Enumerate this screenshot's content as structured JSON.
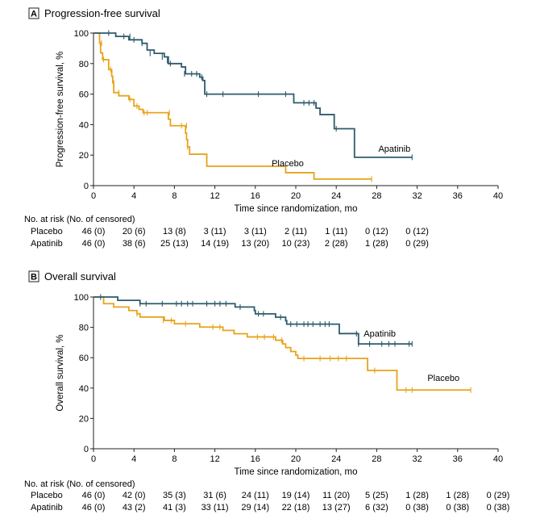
{
  "colors": {
    "placebo": "#E8A31A",
    "apatinib": "#2D5B6B",
    "axis": "#222222"
  },
  "chart_data": [
    {
      "type": "line",
      "panel_letter": "A",
      "title": "Progression-free survival",
      "xlabel": "Time since randomization, mo",
      "ylabel": "Progression-free survival, %",
      "xlim": [
        0,
        40
      ],
      "ylim": [
        0,
        100
      ],
      "xticks": [
        "0",
        "4",
        "8",
        "12",
        "16",
        "20",
        "24",
        "28",
        "32",
        "36",
        "40"
      ],
      "yticks": [
        "0",
        "20",
        "40",
        "60",
        "80",
        "100"
      ],
      "series": [
        {
          "name": "Apatinib",
          "color_key": "apatinib",
          "steps": [
            [
              0,
              100
            ],
            [
              2.2,
              97.8
            ],
            [
              3.5,
              95.6
            ],
            [
              4.8,
              93.3
            ],
            [
              5.3,
              88.9
            ],
            [
              6.0,
              86.7
            ],
            [
              7.0,
              84.4
            ],
            [
              7.4,
              80
            ],
            [
              8.7,
              77.8
            ],
            [
              9.1,
              73.3
            ],
            [
              10.5,
              71.1
            ],
            [
              10.8,
              68.9
            ],
            [
              11.0,
              60
            ],
            [
              19.8,
              54.3
            ],
            [
              22.0,
              50.8
            ],
            [
              22.4,
              46.6
            ],
            [
              23.8,
              37.3
            ],
            [
              25.8,
              18.6
            ],
            [
              31.5,
              18.6
            ]
          ],
          "censors": [
            [
              1.5,
              100
            ],
            [
              3.0,
              97.8
            ],
            [
              3.6,
              97.8
            ],
            [
              4.0,
              95.6
            ],
            [
              4.8,
              93.3
            ],
            [
              5.6,
              86.7
            ],
            [
              6.8,
              84.4
            ],
            [
              7.3,
              82
            ],
            [
              7.6,
              80
            ],
            [
              9.0,
              73.3
            ],
            [
              9.7,
              73.3
            ],
            [
              10.2,
              73.3
            ],
            [
              10.7,
              71.1
            ],
            [
              11.2,
              60
            ],
            [
              12.8,
              60
            ],
            [
              16.3,
              60
            ],
            [
              19.0,
              60
            ],
            [
              20.8,
              54.3
            ],
            [
              21.3,
              54.3
            ],
            [
              21.8,
              54.3
            ],
            [
              24.0,
              37.3
            ],
            [
              31.5,
              18.6
            ]
          ],
          "label": "Apatinib"
        },
        {
          "name": "Placebo",
          "color_key": "placebo",
          "steps": [
            [
              0,
              100
            ],
            [
              0.6,
              93.5
            ],
            [
              0.7,
              87.0
            ],
            [
              0.9,
              82.6
            ],
            [
              1.5,
              76.1
            ],
            [
              1.8,
              71.7
            ],
            [
              1.9,
              67.4
            ],
            [
              2.0,
              61.0
            ],
            [
              2.5,
              58.9
            ],
            [
              3.5,
              56.5
            ],
            [
              4.0,
              52.2
            ],
            [
              4.5,
              50.0
            ],
            [
              4.9,
              47.8
            ],
            [
              7.4,
              43.6
            ],
            [
              7.6,
              39.3
            ],
            [
              9.1,
              34.5
            ],
            [
              9.2,
              30.2
            ],
            [
              9.3,
              25.4
            ],
            [
              9.5,
              20.6
            ],
            [
              11.2,
              12.7
            ],
            [
              19.0,
              8.5
            ],
            [
              21.8,
              4.3
            ],
            [
              27.5,
              4.3
            ]
          ],
          "censors": [
            [
              0.8,
              93.5
            ],
            [
              1.0,
              82.6
            ],
            [
              1.7,
              76.1
            ],
            [
              2.0,
              67.4
            ],
            [
              2.5,
              61.0
            ],
            [
              3.6,
              56.5
            ],
            [
              4.3,
              52.2
            ],
            [
              5.0,
              47.8
            ],
            [
              5.3,
              47.8
            ],
            [
              7.5,
              47.8
            ],
            [
              8.7,
              39.3
            ],
            [
              9.2,
              39.3
            ],
            [
              9.3,
              25.4
            ],
            [
              27.5,
              4.3
            ]
          ],
          "label": "Placebo"
        }
      ],
      "risk_table": {
        "header": "No. at risk (No. of censored)",
        "rows": [
          {
            "name": "Placebo",
            "values": [
              "46 (0)",
              "20 (6)",
              "13 (8)",
              "3 (11)",
              "3 (11)",
              "2 (11)",
              "1 (11)",
              "0 (12)",
              "0 (12)"
            ]
          },
          {
            "name": "Apatinib",
            "values": [
              "46 (0)",
              "38 (6)",
              "25 (13)",
              "14 (19)",
              "13 (20)",
              "10 (23)",
              "2 (28)",
              "1 (28)",
              "0 (29)"
            ]
          }
        ]
      }
    },
    {
      "type": "line",
      "panel_letter": "B",
      "title": "Overall survival",
      "xlabel": "Time since randomization, mo",
      "ylabel": "Overall survival, %",
      "xlim": [
        0,
        40
      ],
      "ylim": [
        0,
        100
      ],
      "xticks": [
        "0",
        "4",
        "8",
        "12",
        "16",
        "20",
        "24",
        "28",
        "32",
        "36",
        "40"
      ],
      "yticks": [
        "0",
        "20",
        "40",
        "60",
        "80",
        "100"
      ],
      "series": [
        {
          "name": "Apatinib",
          "color_key": "apatinib",
          "steps": [
            [
              0,
              100
            ],
            [
              2.4,
              97.8
            ],
            [
              4.6,
              95.6
            ],
            [
              14.0,
              93.4
            ],
            [
              15.9,
              91.1
            ],
            [
              16.0,
              88.9
            ],
            [
              18.0,
              86.7
            ],
            [
              19.0,
              84.4
            ],
            [
              19.1,
              82.1
            ],
            [
              24.3,
              75.9
            ],
            [
              26.2,
              69.1
            ],
            [
              31.5,
              69.1
            ]
          ],
          "censors": [
            [
              0.7,
              100
            ],
            [
              4.6,
              95.6
            ],
            [
              5.2,
              95.6
            ],
            [
              6.8,
              95.6
            ],
            [
              8.2,
              95.6
            ],
            [
              8.7,
              95.6
            ],
            [
              9.3,
              95.6
            ],
            [
              9.8,
              95.6
            ],
            [
              11.2,
              95.6
            ],
            [
              12.0,
              95.6
            ],
            [
              12.5,
              95.6
            ],
            [
              13.1,
              95.6
            ],
            [
              14.5,
              93.4
            ],
            [
              16.3,
              88.9
            ],
            [
              16.8,
              88.9
            ],
            [
              18.5,
              86.7
            ],
            [
              19.5,
              82.1
            ],
            [
              20.1,
              82.1
            ],
            [
              20.8,
              82.1
            ],
            [
              21.2,
              82.1
            ],
            [
              21.7,
              82.1
            ],
            [
              22.4,
              82.1
            ],
            [
              22.9,
              82.1
            ],
            [
              23.3,
              82.1
            ],
            [
              26.0,
              75.9
            ],
            [
              26.2,
              69.1
            ],
            [
              27.3,
              69.1
            ],
            [
              28.5,
              69.1
            ],
            [
              29.2,
              69.1
            ],
            [
              29.8,
              69.1
            ],
            [
              31.2,
              69.1
            ],
            [
              31.5,
              69.1
            ]
          ],
          "label": "Apatinib"
        },
        {
          "name": "Placebo",
          "color_key": "placebo",
          "steps": [
            [
              0,
              100
            ],
            [
              1.0,
              95.6
            ],
            [
              2.0,
              93.4
            ],
            [
              3.5,
              91.1
            ],
            [
              4.3,
              89.0
            ],
            [
              4.6,
              86.8
            ],
            [
              7.0,
              84.6
            ],
            [
              8.0,
              82.4
            ],
            [
              10.5,
              80.2
            ],
            [
              12.8,
              78.0
            ],
            [
              13.9,
              75.8
            ],
            [
              15.2,
              73.7
            ],
            [
              18.0,
              71.5
            ],
            [
              18.7,
              69.1
            ],
            [
              19.0,
              66.7
            ],
            [
              19.5,
              64.1
            ],
            [
              20.0,
              61.7
            ],
            [
              20.2,
              59.5
            ],
            [
              27.1,
              51.6
            ],
            [
              30.0,
              38.7
            ],
            [
              37.3,
              38.7
            ]
          ],
          "censors": [
            [
              4.3,
              89.0
            ],
            [
              6.9,
              84.6
            ],
            [
              7.7,
              84.6
            ],
            [
              9.1,
              82.4
            ],
            [
              11.8,
              80.2
            ],
            [
              12.5,
              80.2
            ],
            [
              16.2,
              73.7
            ],
            [
              16.9,
              73.7
            ],
            [
              17.8,
              73.7
            ],
            [
              18.6,
              71.5
            ],
            [
              20.8,
              59.5
            ],
            [
              22.4,
              59.5
            ],
            [
              23.4,
              59.5
            ],
            [
              24.2,
              59.5
            ],
            [
              25.0,
              59.5
            ],
            [
              27.8,
              51.6
            ],
            [
              30.9,
              38.7
            ],
            [
              31.5,
              38.7
            ],
            [
              37.3,
              38.7
            ]
          ],
          "label": "Placebo"
        }
      ],
      "risk_table": {
        "header": "No. at risk (No. of censored)",
        "rows": [
          {
            "name": "Placebo",
            "values": [
              "46 (0)",
              "42 (0)",
              "35 (3)",
              "31 (6)",
              "24 (11)",
              "19 (14)",
              "11 (20)",
              "5 (25)",
              "1 (28)",
              "1 (28)",
              "0 (29)"
            ]
          },
          {
            "name": "Apatinib",
            "values": [
              "46 (0)",
              "43 (2)",
              "41 (3)",
              "33 (11)",
              "29 (14)",
              "22 (18)",
              "13 (27)",
              "6 (32)",
              "0 (38)",
              "0 (38)",
              "0 (38)"
            ]
          }
        ]
      }
    }
  ]
}
